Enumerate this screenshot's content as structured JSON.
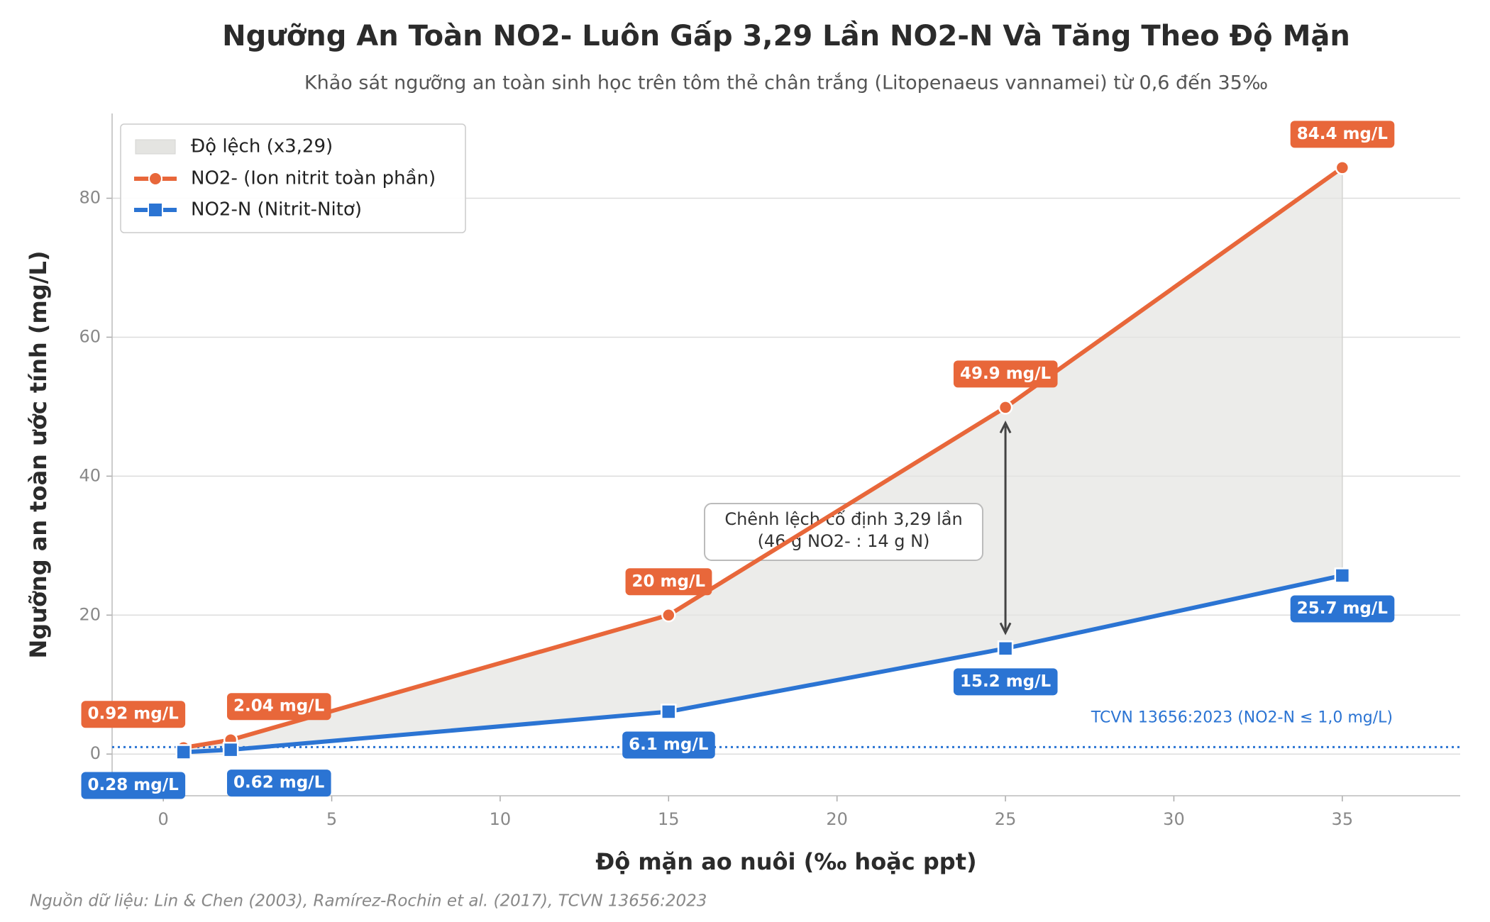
{
  "chart_data": {
    "type": "line",
    "title": "Ngưỡng An Toàn NO2- Luôn Gấp 3,29 Lần NO2-N Và Tăng Theo Độ Mặn",
    "subtitle": "Khảo sát ngưỡng an toàn sinh học trên tôm thẻ chân trắng (Litopenaeus vannamei) từ 0,6 đến 35‰",
    "xlabel": "Độ mặn ao nuôi (‰ hoặc ppt)",
    "ylabel": "Ngưỡng an toàn ước tính (mg/L)",
    "x": [
      0.6,
      2,
      15,
      25,
      35
    ],
    "series": [
      {
        "name": "NO2- (Ion nitrit toàn phần)",
        "color": "#e8673a",
        "marker": "circle",
        "values": [
          0.92,
          2.04,
          20,
          49.9,
          84.4
        ],
        "value_labels": [
          "0.92 mg/L",
          "2.04 mg/L",
          "20 mg/L",
          "49.9 mg/L",
          "84.4 mg/L"
        ]
      },
      {
        "name": "NO2-N (Nitrit-Nitơ)",
        "color": "#2b74d3",
        "marker": "square",
        "values": [
          0.28,
          0.62,
          6.1,
          15.2,
          25.7
        ],
        "value_labels": [
          "0.28 mg/L",
          "0.62 mg/L",
          "6.1 mg/L",
          "15.2 mg/L",
          "25.7 mg/L"
        ]
      }
    ],
    "fill": {
      "name": "Độ lệch (x3,29)",
      "color": "#e4e4e1"
    },
    "threshold": {
      "value": 1,
      "label": "TCVN 13656:2023 (NO2-N ≤ 1,0 mg/L)",
      "color": "#2b74d3"
    },
    "annotation": [
      "Chênh lệch cố định 3,29 lần",
      "(46 g NO2- : 14 g N)"
    ],
    "xlim": [
      -1.52,
      38.5
    ],
    "ylim": [
      -6,
      92.2
    ],
    "xticks": [
      0,
      5,
      10,
      15,
      20,
      25,
      30,
      35
    ],
    "yticks": [
      0,
      20,
      40,
      60,
      80
    ],
    "grid": true,
    "legend": "upper left",
    "source": "Nguồn dữ liệu: Lin & Chen (2003), Ramírez-Rochin et al. (2017), TCVN 13656:2023"
  }
}
